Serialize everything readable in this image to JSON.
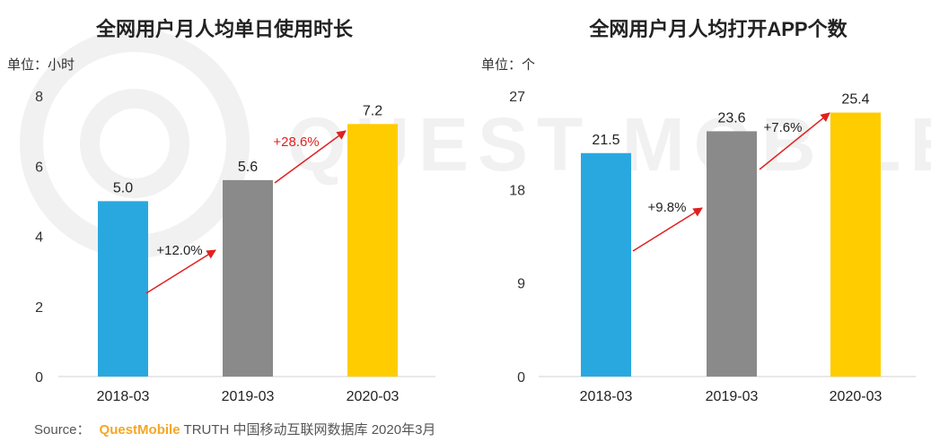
{
  "watermark_text": "QUEST MOBILE",
  "source": {
    "label": "Source：",
    "brand": "QuestMobile",
    "text": "TRUTH 中国移动互联网数据库 2020年3月"
  },
  "colors": {
    "bar1": "#29a8e0",
    "bar2": "#8a8a8a",
    "bar3": "#ffcc00",
    "arrow": "#e02020"
  },
  "chart_data": [
    {
      "type": "bar",
      "title": "全网用户月人均单日使用时长",
      "unit_label": "单位：小时",
      "categories": [
        "2018-03",
        "2019-03",
        "2020-03"
      ],
      "values": [
        5.0,
        5.6,
        7.2
      ],
      "value_labels": [
        "5.0",
        "5.6",
        "7.2"
      ],
      "ylim": [
        0,
        8
      ],
      "yticks": [
        0,
        2,
        4,
        6,
        8
      ],
      "growth": [
        {
          "label": "+12.0%",
          "color": "#222222"
        },
        {
          "label": "+28.6%",
          "color": "#e02020"
        }
      ]
    },
    {
      "type": "bar",
      "title": "全网用户月人均打开APP个数",
      "unit_label": "单位：个",
      "categories": [
        "2018-03",
        "2019-03",
        "2020-03"
      ],
      "values": [
        21.5,
        23.6,
        25.4
      ],
      "value_labels": [
        "21.5",
        "23.6",
        "25.4"
      ],
      "ylim": [
        0,
        27
      ],
      "yticks": [
        0,
        9,
        18,
        27
      ],
      "growth": [
        {
          "label": "+9.8%",
          "color": "#222222"
        },
        {
          "label": "+7.6%",
          "color": "#222222"
        }
      ]
    }
  ]
}
